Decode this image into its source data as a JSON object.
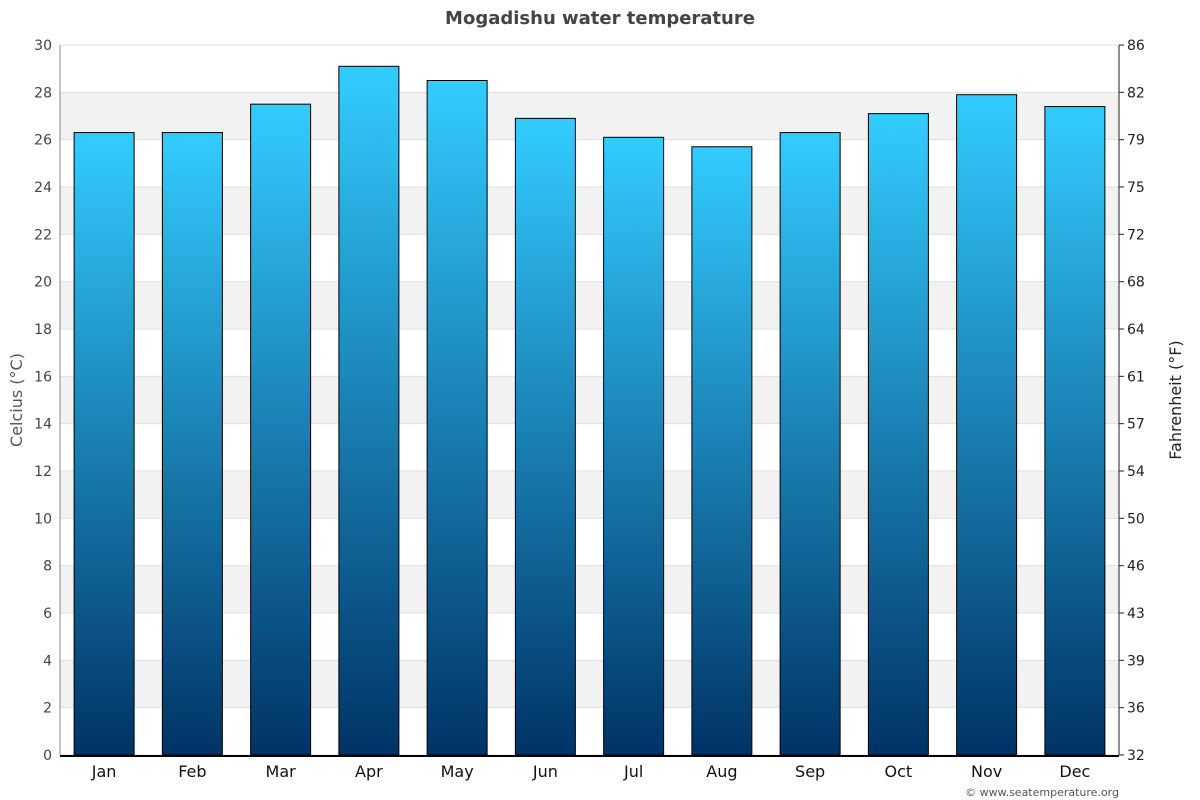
{
  "chart_data": {
    "type": "bar",
    "title": "Mogadishu water temperature",
    "ylabel": "Celcius (°C)",
    "ylabel_right": "Fahrenheit (°F)",
    "categories": [
      "Jan",
      "Feb",
      "Mar",
      "Apr",
      "May",
      "Jun",
      "Jul",
      "Aug",
      "Sep",
      "Oct",
      "Nov",
      "Dec"
    ],
    "values": [
      26.3,
      26.3,
      27.5,
      29.1,
      28.5,
      26.9,
      26.1,
      25.7,
      26.3,
      27.1,
      27.9,
      27.4
    ],
    "ylim": [
      0,
      30
    ],
    "yticks": [
      "0",
      "2",
      "4",
      "6",
      "8",
      "10",
      "12",
      "14",
      "16",
      "18",
      "20",
      "22",
      "24",
      "26",
      "28",
      "30"
    ],
    "yticks_right": [
      "32",
      "36",
      "39",
      "43",
      "46",
      "50",
      "54",
      "57",
      "61",
      "64",
      "68",
      "72",
      "75",
      "79",
      "82",
      "86"
    ],
    "grid": true,
    "colors": {
      "bar_top": "#33ccff",
      "bar_bottom": "#003366",
      "band": "#f2f2f2"
    }
  },
  "footer": {
    "credit": "© www.seatemperature.org"
  }
}
